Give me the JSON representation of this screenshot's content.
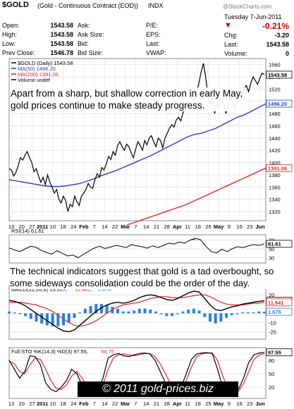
{
  "header": {
    "symbol": "$GOLD",
    "description": "(Gold - Continuous Contract (EOD))",
    "exchange": "INDX",
    "watermark": "@StockCharts.com",
    "date": "Tuesday 7-Jun-2011",
    "change_arrow": "▼",
    "change_pct": "-0.21%",
    "arrow_color": "#cc0000"
  },
  "quote": {
    "open_label": "Open:",
    "open": "1543.58",
    "high_label": "High:",
    "high": "1543.58",
    "low_label": "Low:",
    "low": "1543.58",
    "prev_close_label": "Prev Close:",
    "prev_close": "1546.78",
    "ask_label": "Ask:",
    "ask": "",
    "ask_size_label": "Ask Size:",
    "ask_size": "",
    "bid_label": "Bid:",
    "bid": "",
    "bid_size_label": "Bid Size:",
    "bid_size": "",
    "pe_label": "P/E:",
    "pe": "",
    "eps_label": "EPS:",
    "eps": "",
    "last_label": "Last:",
    "last": "1543.58",
    "vwap_label": "VWAP:",
    "vwap": "",
    "chg_label": "Chg:",
    "chg": "-3.20",
    "volume_label": "Volume:",
    "volume": "0"
  },
  "annotations": {
    "main": "Apart from a sharp, but shallow correction in early May, gold prices continue to make steady progress.",
    "indicators": "The technical indicators suggest that gold is a tad overbought, so some sideways consolidation could be the order of the day.",
    "copyright": "© 2011 gold-prices.biz"
  },
  "chart_data": [
    {
      "type": "line",
      "legend": [
        {
          "label": "$GOLD (Daily) 1543.58",
          "color": "#000000"
        },
        {
          "label": "MA(50) 1496.20",
          "color": "#2a3fd1"
        },
        {
          "label": "MA(200) 1391.06",
          "color": "#e2262b"
        },
        {
          "label": "Volume undef",
          "color": "#000000"
        }
      ],
      "x_tick_labels": [
        "13",
        "20",
        "27",
        "2011",
        "10",
        "18",
        "24",
        "Feb",
        "7",
        "14",
        "22",
        "Mar",
        "7",
        "14",
        "21",
        "28",
        "Apr",
        "11",
        "18",
        "25",
        "May",
        "9",
        "16",
        "23",
        "Jun"
      ],
      "y_ticks": [
        1320,
        1340,
        1360,
        1380,
        1400,
        1420,
        1440,
        1460,
        1480,
        1500,
        1520,
        1540,
        1560
      ],
      "ylim": [
        1305,
        1570
      ],
      "grid": true,
      "last_value_labels": [
        {
          "text": "1543.58",
          "value": 1543.58,
          "color": "#000000"
        },
        {
          "text": "1496.20",
          "value": 1496.2,
          "color": "#2a3fd1"
        },
        {
          "text": "1391.06",
          "value": 1391.06,
          "color": "#e2262b"
        }
      ],
      "series": [
        {
          "name": "$GOLD (Daily)",
          "color": "#000000",
          "values": [
            1390,
            1388,
            1378,
            1384,
            1395,
            1408,
            1404,
            1412,
            1418,
            1408,
            1400,
            1385,
            1390,
            1378,
            1368,
            1376,
            1364,
            1380,
            1368,
            1360,
            1350,
            1356,
            1340,
            1334,
            1345,
            1338,
            1320,
            1332,
            1328,
            1345,
            1336,
            1330,
            1345,
            1350,
            1356,
            1366,
            1360,
            1358,
            1372,
            1382,
            1376,
            1392,
            1388,
            1398,
            1410,
            1405,
            1418,
            1412,
            1428,
            1434,
            1426,
            1420,
            1430,
            1426,
            1416,
            1408,
            1422,
            1434,
            1428,
            1420,
            1436,
            1429,
            1440,
            1444,
            1434,
            1426,
            1440,
            1436,
            1424,
            1440,
            1448,
            1456,
            1462,
            1458,
            1470,
            1474,
            1468,
            1482,
            1488,
            1498,
            1504,
            1510,
            1500,
            1514,
            1530,
            1548,
            1562,
            1540,
            1510,
            1496,
            1506,
            1480,
            1498,
            1490,
            1508,
            1496,
            1480,
            1494,
            1510,
            1496,
            1488,
            1500,
            1512,
            1508,
            1520,
            1526,
            1516,
            1530,
            1540,
            1534,
            1528,
            1538,
            1546,
            1543.58
          ]
        },
        {
          "name": "MA(50)",
          "color": "#2a3fd1",
          "values": [
            1372,
            1370,
            1368,
            1366,
            1364,
            1362,
            1361,
            1361,
            1362,
            1364,
            1366,
            1370,
            1374,
            1379,
            1383,
            1387,
            1392,
            1397,
            1402,
            1407,
            1412,
            1418,
            1424,
            1430,
            1436,
            1442,
            1446,
            1448,
            1452,
            1456,
            1462,
            1468,
            1474,
            1478,
            1484,
            1490,
            1496.2
          ]
        },
        {
          "name": "MA(200)",
          "color": "#e2262b",
          "values": [
            1298,
            1301,
            1304,
            1307,
            1310,
            1313,
            1316,
            1319,
            1322,
            1325,
            1328,
            1331,
            1335,
            1339,
            1343,
            1347,
            1351,
            1355,
            1359,
            1363,
            1367,
            1371,
            1375,
            1379,
            1383,
            1387,
            1391.06
          ]
        }
      ]
    },
    {
      "type": "line",
      "legend": [
        {
          "label": "RSI(14) 61.61",
          "color": "#000000"
        }
      ],
      "y_ticks": [
        30,
        50,
        70
      ],
      "ylim": [
        18,
        82
      ],
      "last_value_label": {
        "text": "61.61",
        "value": 61.61
      },
      "series": [
        {
          "name": "RSI(14)",
          "color": "#000000",
          "values": [
            52,
            48,
            44,
            50,
            56,
            54,
            47,
            42,
            38,
            46,
            40,
            34,
            36,
            30,
            38,
            45,
            52,
            56,
            51,
            54,
            58,
            56,
            53,
            60,
            57,
            55,
            52,
            57,
            53,
            58,
            63,
            61,
            66,
            63,
            70,
            74,
            71,
            56,
            44,
            41,
            49,
            44,
            51,
            55,
            53,
            57,
            60,
            58,
            61.61
          ]
        }
      ]
    },
    {
      "type": "line",
      "legend": [
        {
          "label": "MACD(12,26,9) 13.517,",
          "color": "#000000"
        },
        {
          "label": "11.841,",
          "color": "#e2262b"
        },
        {
          "label": "1.676",
          "color": "#2f7fd8"
        }
      ],
      "y_ticks": [
        -20,
        -10,
        0,
        10,
        20
      ],
      "ylim": [
        -28,
        30
      ],
      "last_value_labels": [
        {
          "text": "13.517",
          "value": 13.517,
          "color": "#000000"
        },
        {
          "text": "11.841",
          "value": 11.841,
          "color": "#e2262b"
        },
        {
          "text": "1.676",
          "value": 1.676,
          "color": "#2f7fd8"
        }
      ],
      "series": [
        {
          "name": "MACD",
          "color": "#000000",
          "values": [
            14,
            13,
            11,
            8,
            4,
            0,
            -4,
            -8,
            -12,
            -16,
            -19,
            -20,
            -18,
            -13,
            -8,
            -3,
            2,
            6,
            9,
            11,
            12,
            11,
            12,
            14,
            17,
            19,
            20,
            19,
            17,
            15,
            14,
            16,
            19,
            22,
            24,
            23,
            16,
            9,
            4,
            3,
            5,
            7,
            8,
            10,
            11,
            12,
            13,
            13.517
          ]
        },
        {
          "name": "Signal",
          "color": "#e2262b",
          "values": [
            12,
            12,
            12,
            11,
            10,
            9,
            7,
            5,
            2,
            -2,
            -6,
            -10,
            -13,
            -14,
            -13,
            -11,
            -8,
            -4,
            0,
            4,
            7,
            9,
            10,
            11,
            12,
            14,
            16,
            17,
            18,
            18,
            17,
            17,
            17,
            18,
            19,
            20,
            20,
            18,
            15,
            12,
            10,
            9,
            9,
            9,
            10,
            11,
            11,
            11.841
          ]
        }
      ]
    },
    {
      "type": "line",
      "legend": [
        {
          "label": "Full STO %K(14,3) %D(3) 97.55,",
          "color": "#000000"
        },
        {
          "label": "94.75",
          "color": "#e2262b"
        }
      ],
      "y_ticks": [
        20,
        50,
        80
      ],
      "ylim": [
        -5,
        108
      ],
      "last_value_label": {
        "text": "97.55",
        "value": 97.55
      },
      "series": [
        {
          "name": "%K",
          "color": "#000000",
          "values": [
            80,
            60,
            40,
            55,
            90,
            88,
            70,
            30,
            15,
            10,
            20,
            35,
            60,
            50,
            25,
            8,
            5,
            10,
            40,
            85,
            92,
            95,
            90,
            88,
            92,
            95,
            96,
            94,
            80,
            55,
            30,
            15,
            10,
            20,
            50,
            82,
            94,
            96,
            97,
            95,
            60,
            20,
            8,
            5,
            15,
            40,
            75,
            92,
            96,
            97.55
          ]
        },
        {
          "name": "%D",
          "color": "#e2262b",
          "values": [
            78,
            72,
            55,
            50,
            70,
            85,
            82,
            60,
            35,
            18,
            15,
            25,
            45,
            55,
            40,
            20,
            10,
            8,
            25,
            60,
            85,
            92,
            94,
            92,
            90,
            92,
            95,
            95,
            88,
            72,
            50,
            28,
            15,
            15,
            35,
            65,
            88,
            94,
            96,
            96,
            80,
            45,
            18,
            8,
            10,
            28,
            55,
            82,
            92,
            94.75
          ]
        }
      ]
    }
  ]
}
